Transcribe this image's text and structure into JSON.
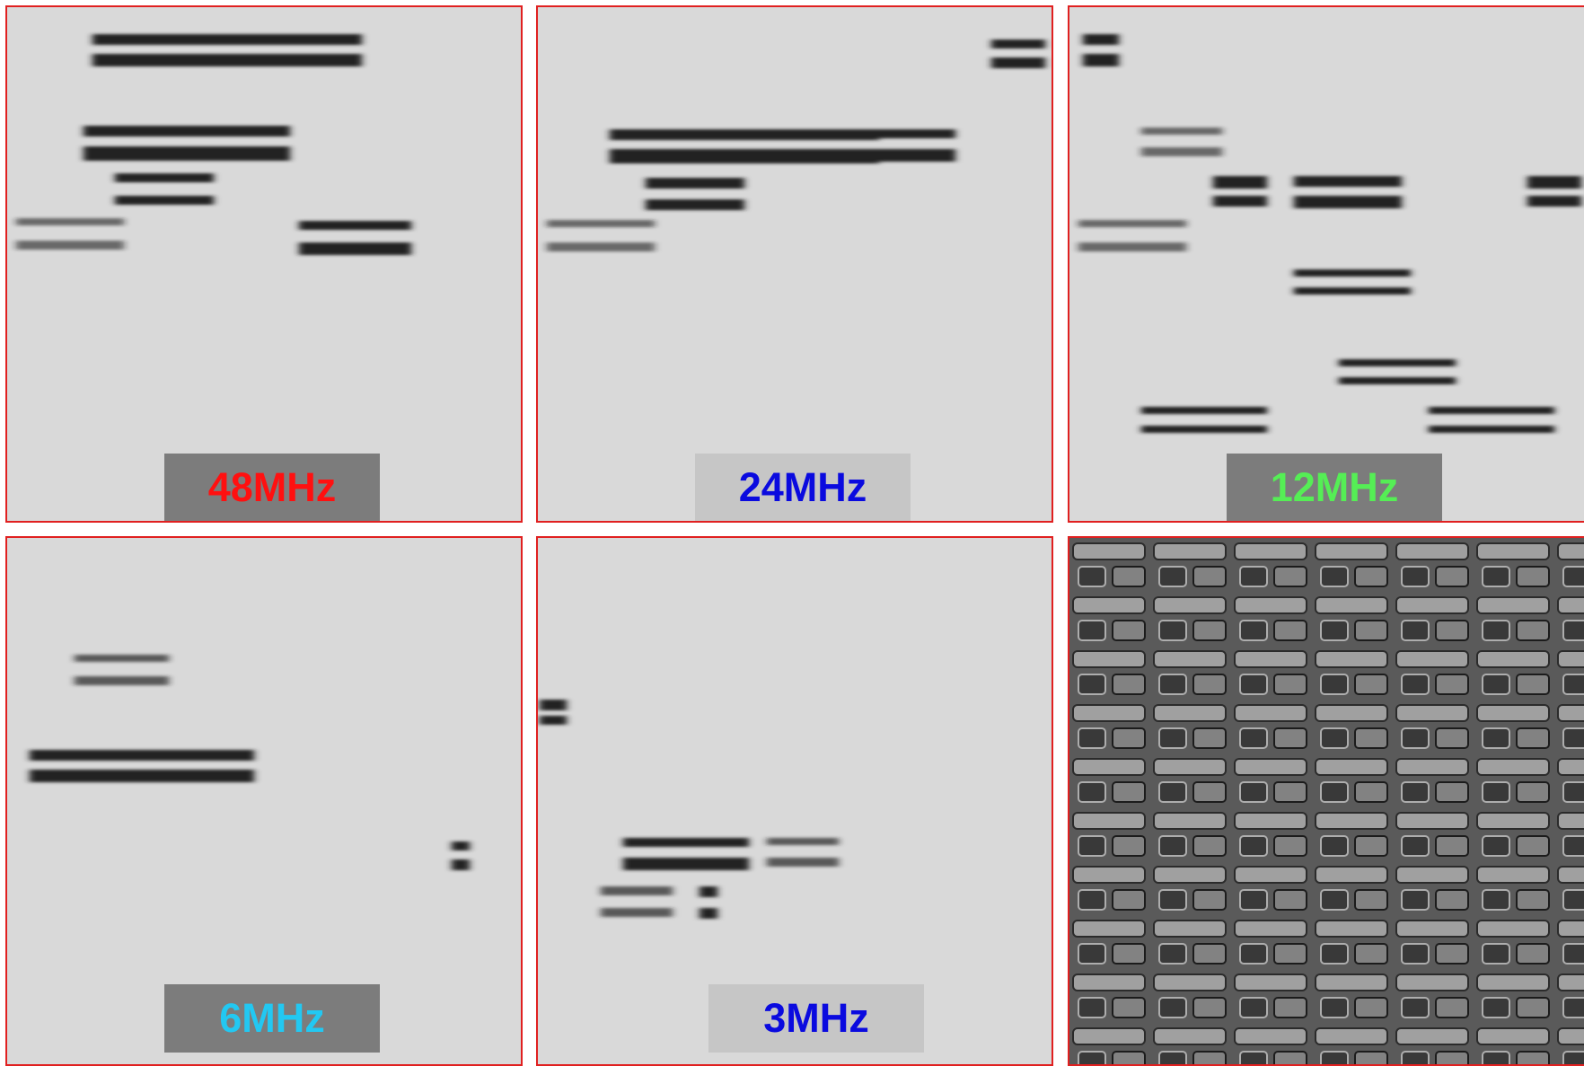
{
  "panels": [
    {
      "label": "48MHz"
    },
    {
      "label": "24MHz"
    },
    {
      "label": "12MHz"
    },
    {
      "label": "6MHz"
    },
    {
      "label": "3MHz"
    }
  ]
}
